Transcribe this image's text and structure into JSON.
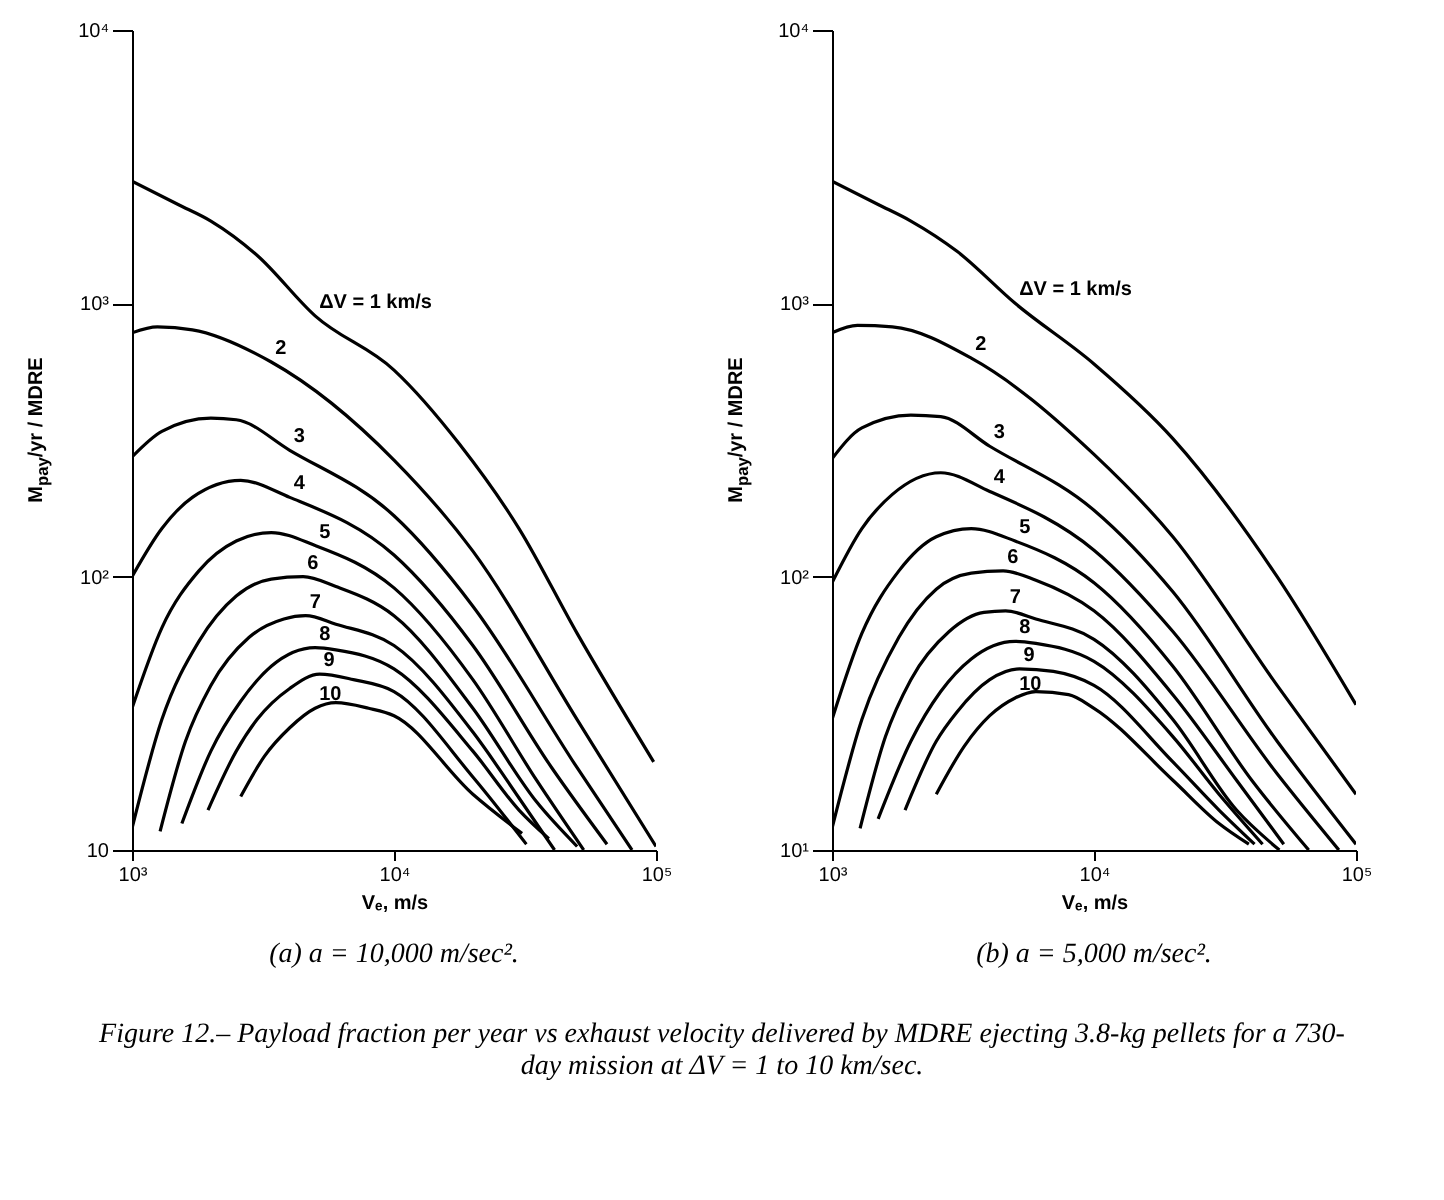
{
  "chart_data": [
    {
      "type": "line",
      "title": "(a) a = 10,000 m/sec².",
      "xlabel": "Vₑ, m/s",
      "ylabel": "M$_{pay}$/yr / MDRE",
      "log": "xy",
      "xlim": [
        1000,
        100000
      ],
      "ylim": [
        10,
        10000
      ],
      "xticks": [
        {
          "value": 1000,
          "label": "10³"
        },
        {
          "value": 10000,
          "label": "10⁴"
        },
        {
          "value": 100000,
          "label": "10⁵"
        }
      ],
      "yticks": [
        10,
        {
          "value": 100,
          "label": "10²"
        },
        {
          "value": 1000,
          "label": "10³"
        },
        {
          "value": 10000,
          "label": "10⁴"
        }
      ],
      "annotations": [
        "Figure 12.– Payload fraction per year vs exhaust velocity delivered by MDRE ejecting 3.8-kg pellets for a 730-day mission at ΔV = 1 to 10 km/sec."
      ],
      "series": [
        {
          "name": "ΔV = 1 km/s",
          "color": "#000000",
          "x": [
            1000,
            1500,
            2000,
            3000,
            5000,
            10000,
            17800,
            30000,
            50000,
            98000
          ],
          "values": [
            2800,
            2300,
            2000,
            1500,
            900,
            570,
            305,
            150,
            62,
            21
          ]
        },
        {
          "name": "2",
          "color": "#000000",
          "x": [
            1000,
            1250,
            1700,
            3400,
            10000,
            20000,
            50000,
            100000
          ],
          "values": [
            780,
            820,
            800,
            610,
            267,
            124,
            30,
            10.3
          ]
        },
        {
          "name": "3",
          "color": "#000000",
          "x": [
            1000,
            1300,
            2000,
            2500,
            4000,
            10000,
            20000,
            50000,
            81000
          ],
          "values": [
            274,
            340,
            380,
            375,
            290,
            167,
            78,
            20,
            10
          ]
        },
        {
          "name": "4",
          "color": "#000000",
          "x": [
            1000,
            1300,
            1700,
            2600,
            4000,
            10000,
            20000,
            40000,
            65000
          ],
          "values": [
            100,
            150,
            195,
            225,
            195,
            120,
            56,
            20,
            10.5
          ]
        },
        {
          "name": "5",
          "color": "#000000",
          "x": [
            1000,
            1300,
            1800,
            2500,
            3400,
            5000,
            10000,
            20000,
            35000,
            53000
          ],
          "values": [
            33,
            65,
            105,
            135,
            145,
            130,
            91,
            42,
            18,
            10
          ]
        },
        {
          "name": "6",
          "color": "#000000",
          "x": [
            1000,
            1300,
            1800,
            2500,
            3400,
            4500,
            6000,
            10000,
            20000,
            35000,
            50000
          ],
          "values": [
            12,
            30,
            58,
            85,
            98,
            100,
            92,
            72,
            33,
            15,
            10.3
          ]
        },
        {
          "name": "7",
          "color": "#000000",
          "x": [
            1280,
            1600,
            2000,
            2800,
            3800,
            4600,
            6000,
            10000,
            20000,
            30000,
            41000
          ],
          "values": [
            11.7,
            25,
            40,
            60,
            70,
            72,
            67,
            56,
            27,
            15.5,
            10
          ]
        },
        {
          "name": "8",
          "color": "#000000",
          "x": [
            1550,
            2000,
            2600,
            3400,
            5000,
            6000,
            10000,
            20000,
            30000,
            39000
          ],
          "values": [
            12.5,
            23,
            35,
            47,
            55,
            54,
            46,
            23,
            14,
            11
          ]
        },
        {
          "name": "9",
          "color": "#000000",
          "x": [
            1950,
            2500,
            3000,
            4000,
            5200,
            7000,
            10000,
            20000,
            32000
          ],
          "values": [
            14,
            23,
            30,
            39,
            44,
            42,
            38,
            18.5,
            10.5
          ]
        },
        {
          "name": "10",
          "color": "#000000",
          "x": [
            2600,
            3200,
            4000,
            5000,
            6000,
            8000,
            10000,
            20000,
            30800
          ],
          "values": [
            15.7,
            22,
            28,
            33,
            34.6,
            33,
            31,
            16,
            11.5
          ]
        }
      ]
    },
    {
      "type": "line",
      "title": "(b) a = 5,000 m/sec².",
      "xlabel": "Vₑ, m/s",
      "ylabel": "M$_{pay}$/yr / MDRE",
      "log": "xy",
      "xlim": [
        1000,
        100000
      ],
      "ylim": [
        10,
        10000
      ],
      "xticks": [
        {
          "value": 1000,
          "label": "10³"
        },
        {
          "value": 10000,
          "label": "10⁴"
        },
        {
          "value": 100000,
          "label": "10⁵"
        }
      ],
      "yticks": [
        {
          "value": 10,
          "label": "10¹"
        },
        {
          "value": 100,
          "label": "10²"
        },
        {
          "value": 1000,
          "label": "10³"
        },
        {
          "value": 10000,
          "label": "10⁴"
        }
      ],
      "series": [
        {
          "name": "ΔV = 1 km/s",
          "color": "#000000",
          "x": [
            1000,
            1500,
            2000,
            3000,
            5000,
            10000,
            20000,
            50000,
            100000
          ],
          "values": [
            2800,
            2300,
            2000,
            1550,
            1000,
            600,
            320,
            100,
            34
          ]
        },
        {
          "name": "2",
          "color": "#000000",
          "x": [
            1000,
            1250,
            1700,
            3400,
            10000,
            20000,
            50000,
            100000
          ],
          "values": [
            780,
            830,
            820,
            630,
            280,
            140,
            40,
            16
          ]
        },
        {
          "name": "3",
          "color": "#000000",
          "x": [
            1000,
            1300,
            2000,
            2600,
            4000,
            10000,
            20000,
            50000,
            100000
          ],
          "values": [
            270,
            350,
            390,
            385,
            300,
            175,
            88,
            25,
            10.5
          ]
        },
        {
          "name": "4",
          "color": "#000000",
          "x": [
            1000,
            1300,
            1700,
            2600,
            4000,
            10000,
            20000,
            50000,
            86000
          ],
          "values": [
            95,
            150,
            200,
            240,
            205,
            125,
            63,
            19,
            10
          ]
        },
        {
          "name": "5",
          "color": "#000000",
          "x": [
            1000,
            1300,
            1800,
            2500,
            3400,
            5000,
            10000,
            20000,
            40000,
            66000
          ],
          "values": [
            30,
            62,
            105,
            140,
            150,
            135,
            95,
            47,
            18,
            10
          ]
        },
        {
          "name": "6",
          "color": "#000000",
          "x": [
            1000,
            1300,
            1800,
            2500,
            3400,
            4500,
            6000,
            10000,
            20000,
            35000,
            53000
          ],
          "values": [
            12,
            30,
            60,
            90,
            103,
            105,
            97,
            75,
            37,
            18,
            10.5
          ]
        },
        {
          "name": "7",
          "color": "#000000",
          "x": [
            1280,
            1600,
            2000,
            2800,
            3800,
            4600,
            6000,
            10000,
            20000,
            35000,
            51000
          ],
          "values": [
            12,
            26,
            42,
            63,
            74,
            75,
            70,
            59,
            30,
            14,
            10
          ]
        },
        {
          "name": "8",
          "color": "#000000",
          "x": [
            1500,
            2000,
            2600,
            3400,
            5000,
            6000,
            10000,
            20000,
            30000,
            44000
          ],
          "values": [
            13,
            25,
            38,
            50,
            58,
            57,
            49,
            26,
            16,
            10.5
          ]
        },
        {
          "name": "9",
          "color": "#000000",
          "x": [
            1900,
            2500,
            3000,
            4000,
            5200,
            7000,
            10000,
            20000,
            30000,
            41000
          ],
          "values": [
            14,
            25,
            32,
            42,
            46,
            45,
            40,
            21,
            14,
            10.5
          ]
        },
        {
          "name": "10",
          "color": "#000000",
          "x": [
            2500,
            3200,
            4000,
            5000,
            6000,
            8000,
            10000,
            20000,
            30000,
            39000
          ],
          "values": [
            16,
            24,
            31,
            36,
            38,
            37,
            33,
            18,
            12.5,
            10.5
          ]
        }
      ]
    }
  ]
}
